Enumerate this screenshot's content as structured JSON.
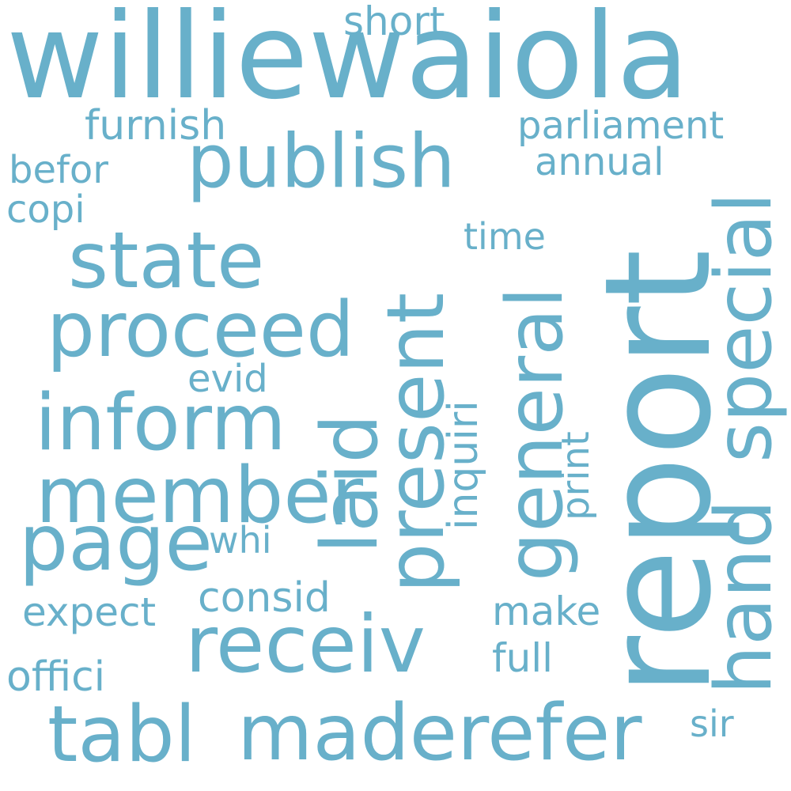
{
  "wordcloud": {
    "color": "#68b0ca",
    "background": "#ffffff",
    "words": {
      "williewaiola": "williewaiola",
      "short": "short",
      "furnish": "furnish",
      "parliament": "parliament",
      "publish": "publish",
      "befor": "befor",
      "annual": "annual",
      "copi": "copi",
      "time": "time",
      "state": "state",
      "proceed": "proceed",
      "evid": "evid",
      "inform": "inform",
      "member": "member",
      "page": "page",
      "whi": "whi",
      "consid": "consid",
      "expect": "expect",
      "make": "make",
      "receiv": "receiv",
      "full": "full",
      "offici": "offici",
      "tabl": "tabl",
      "maderefer": "maderefer",
      "sir": "sir",
      "report": "report",
      "present": "present",
      "laid": "laid",
      "general": "general",
      "special": "special",
      "hand": "hand",
      "inquiri": "inquiri",
      "print": "print"
    }
  }
}
